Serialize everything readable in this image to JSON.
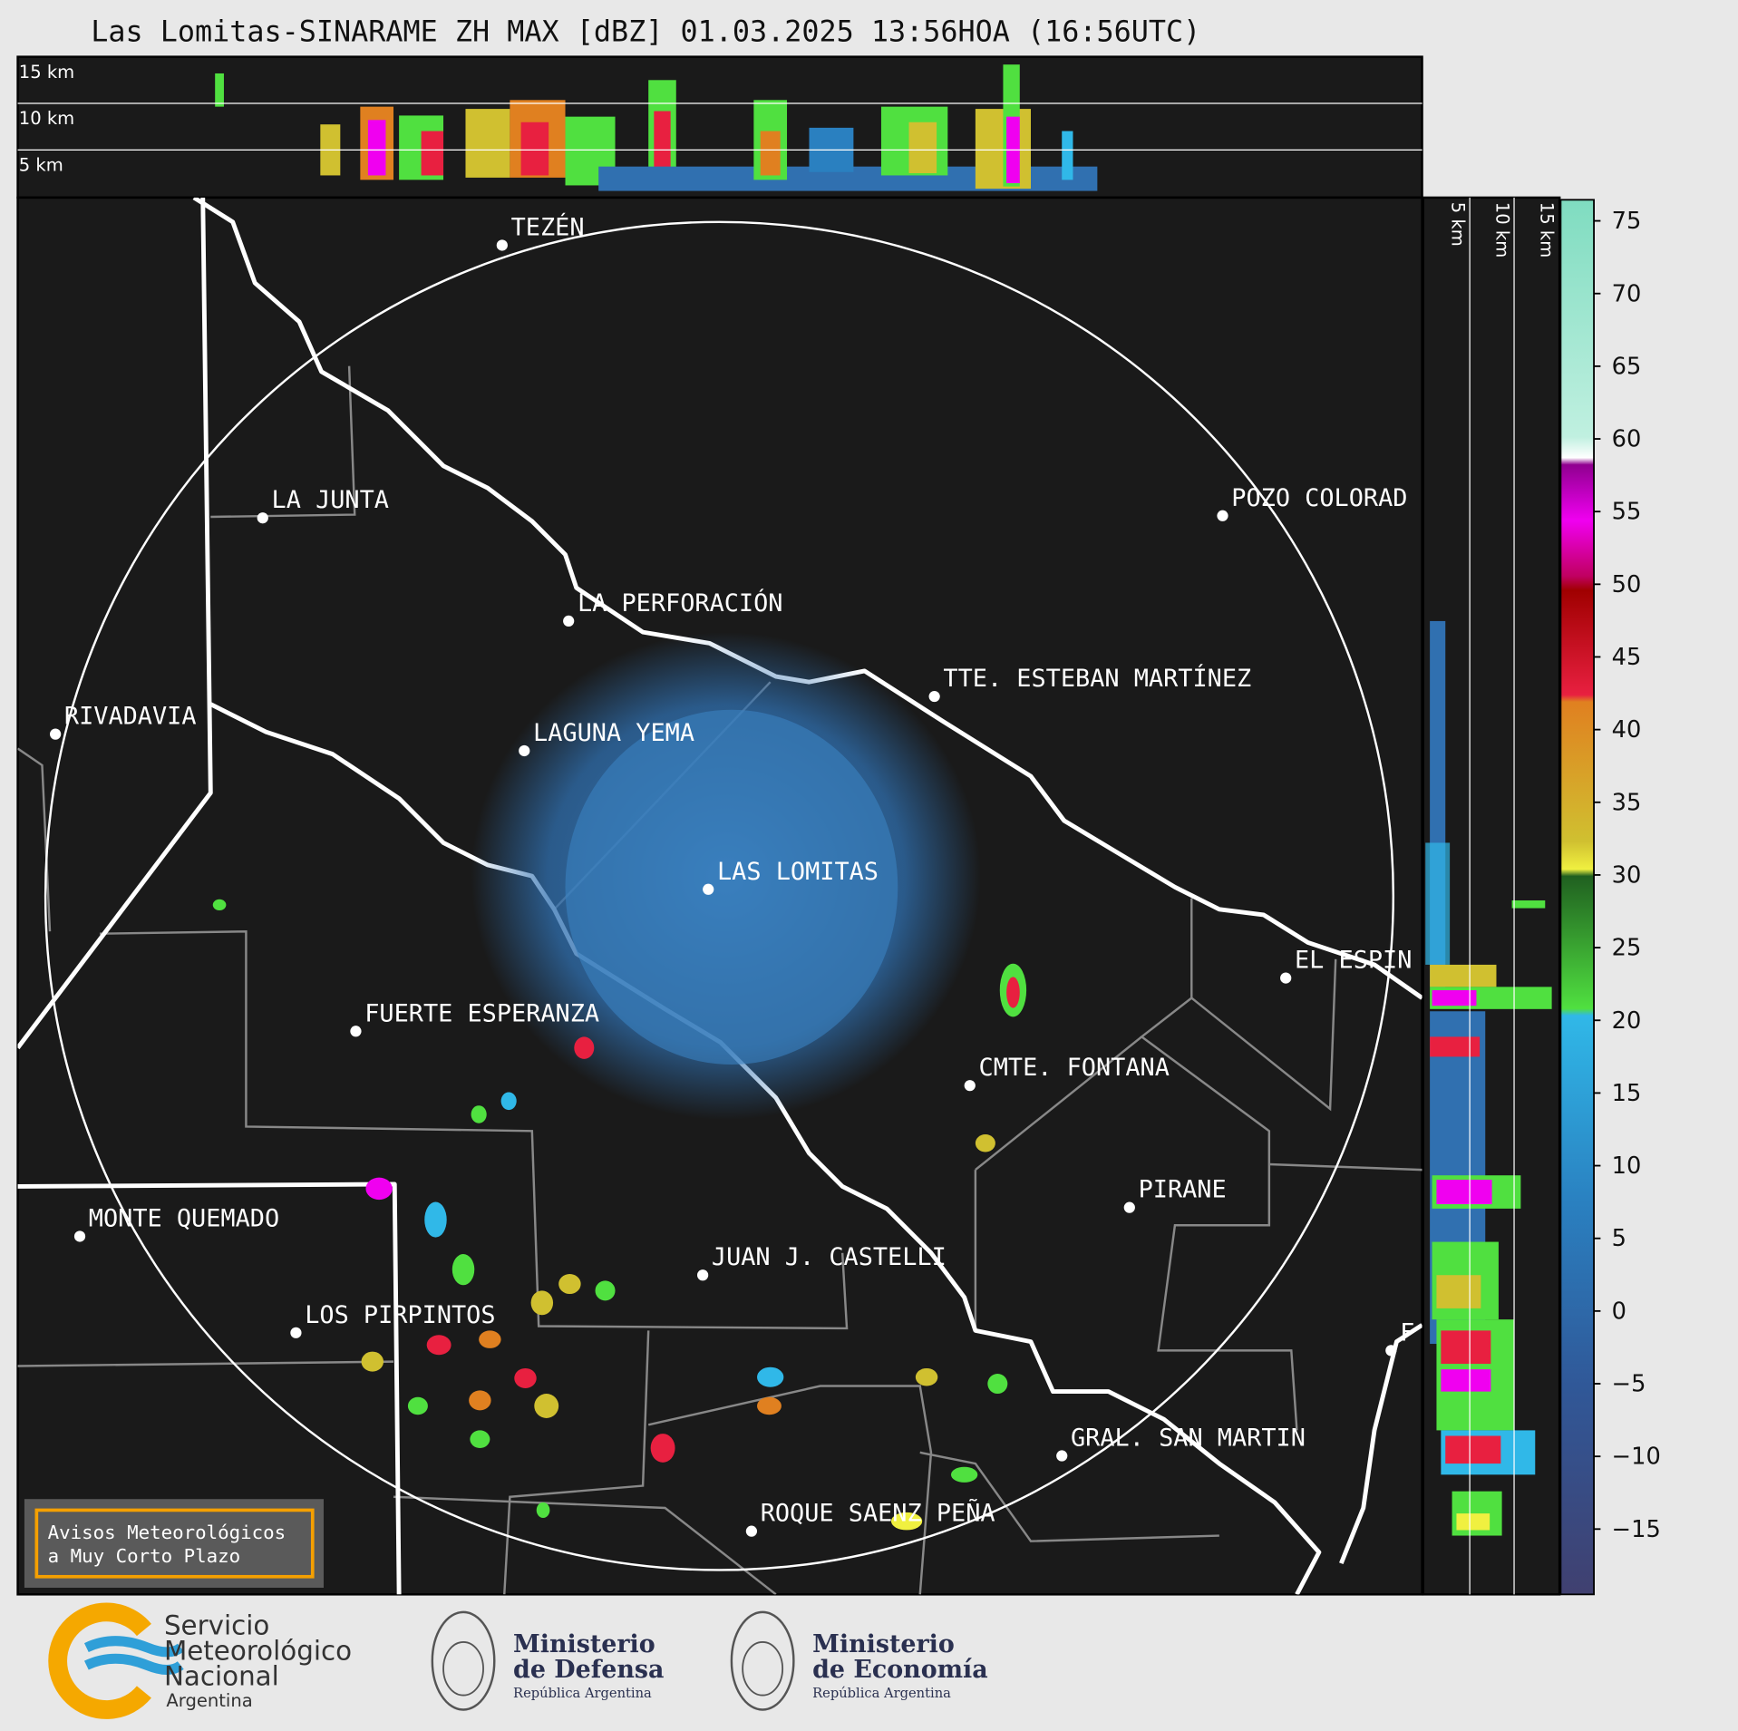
{
  "title": "Las Lomitas-SINARAME ZH MAX [dBZ] 01.03.2025 13:56HOA (16:56UTC)",
  "top_profile": {
    "labels": [
      "15 km",
      "10 km",
      "5 km"
    ]
  },
  "side_profile": {
    "labels": [
      "5 km",
      "10 km",
      "15 km"
    ]
  },
  "colorbar": {
    "ticks": [
      "75",
      "70",
      "65",
      "60",
      "55",
      "50",
      "45",
      "40",
      "35",
      "30",
      "25",
      "20",
      "15",
      "10",
      "5",
      "0",
      "−5",
      "−10",
      "−15"
    ]
  },
  "places": [
    {
      "name": "TEZÉN"
    },
    {
      "name": "LA JUNTA"
    },
    {
      "name": "POZO COLORAD"
    },
    {
      "name": "LA PERFORACIÓN"
    },
    {
      "name": "TTE. ESTEBAN MARTÍNEZ"
    },
    {
      "name": "RIVADAVIA"
    },
    {
      "name": "LAGUNA YEMA"
    },
    {
      "name": "LAS LOMITAS"
    },
    {
      "name": "EL ESPIN"
    },
    {
      "name": "FUERTE ESPERANZA"
    },
    {
      "name": "CMTE. FONTANA"
    },
    {
      "name": "PIRANE"
    },
    {
      "name": "MONTE QUEMADO"
    },
    {
      "name": "JUAN J. CASTELLI"
    },
    {
      "name": "LOS PIRPINTOS"
    },
    {
      "name": "F"
    },
    {
      "name": "GRAL. SAN MARTIN"
    },
    {
      "name": "ROQUE SAENZ PEÑA"
    }
  ],
  "warning_box": {
    "lines": [
      "Avisos Meteorológicos",
      "a Muy Corto Plazo"
    ]
  },
  "logos": [
    {
      "lines": [
        "Servicio",
        "Meteorológico",
        "Nacional",
        "Argentina"
      ]
    },
    {
      "lines": [
        "Ministerio",
        "de Defensa",
        "República Argentina"
      ]
    },
    {
      "lines": [
        "Ministerio",
        "de Economía",
        "República Argentina"
      ]
    }
  ]
}
